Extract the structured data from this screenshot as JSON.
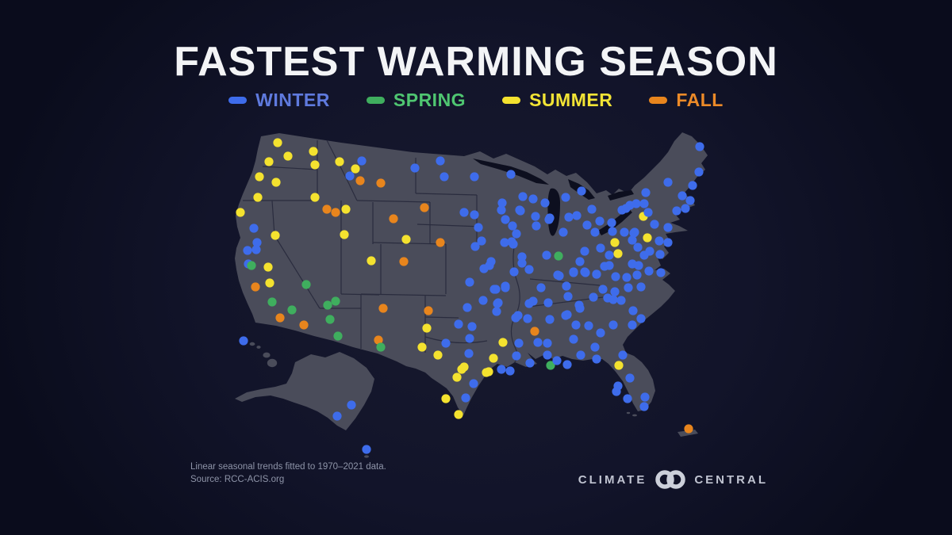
{
  "title": "FASTEST WARMING SEASON",
  "legend": {
    "items": [
      {
        "key": "winter",
        "label": "WINTER",
        "color": "#3e6ceb",
        "label_color": "#5f7ade"
      },
      {
        "key": "spring",
        "label": "SPRING",
        "color": "#3fae5e",
        "label_color": "#4fc671"
      },
      {
        "key": "summer",
        "label": "SUMMER",
        "color": "#f4e22f",
        "label_color": "#f2e435"
      },
      {
        "key": "fall",
        "label": "FALL",
        "color": "#e8851d",
        "label_color": "#ec8a28"
      }
    ]
  },
  "footer": {
    "line1": "Linear seasonal trends fitted to 1970–2021 data.",
    "line2": "Source: RCC-ACIS.org"
  },
  "logo": {
    "left": "CLIMATE",
    "right": "CENTRAL"
  },
  "map_colors": {
    "land": "#4a4c5a",
    "water": "#0d0f1f",
    "state_border": "#25273a"
  },
  "chart_data": {
    "type": "scatter",
    "title": "FASTEST WARMING SEASON",
    "description": "US map of weather stations colored by which season warmed fastest, linear trends 1970-2021",
    "legend_entries": [
      "WINTER",
      "SPRING",
      "SUMMER",
      "FALL"
    ],
    "season_colors": {
      "w": "#3e6ceb",
      "sp": "#3fae5e",
      "su": "#f4e22f",
      "f": "#e8851d"
    },
    "season_names": {
      "w": "winter",
      "sp": "spring",
      "su": "summer",
      "f": "fall"
    },
    "points": [
      [
        350,
        180,
        "su"
      ],
      [
        363,
        197,
        "su"
      ],
      [
        395,
        191,
        "su"
      ],
      [
        339,
        204,
        "su"
      ],
      [
        397,
        208,
        "su"
      ],
      [
        327,
        223,
        "su"
      ],
      [
        348,
        230,
        "su"
      ],
      [
        325,
        249,
        "su"
      ],
      [
        397,
        249,
        "su"
      ],
      [
        303,
        268,
        "su"
      ],
      [
        320,
        288,
        "w"
      ],
      [
        347,
        297,
        "su"
      ],
      [
        312,
        316,
        "w"
      ],
      [
        324,
        306,
        "w"
      ],
      [
        323,
        315,
        "w"
      ],
      [
        313,
        333,
        "w"
      ],
      [
        317,
        335,
        "sp"
      ],
      [
        338,
        337,
        "su"
      ],
      [
        340,
        357,
        "su"
      ],
      [
        322,
        362,
        "f"
      ],
      [
        343,
        381,
        "sp"
      ],
      [
        386,
        359,
        "sp"
      ],
      [
        368,
        391,
        "sp"
      ],
      [
        353,
        401,
        "f"
      ],
      [
        383,
        410,
        "f"
      ],
      [
        413,
        385,
        "sp"
      ],
      [
        423,
        380,
        "sp"
      ],
      [
        416,
        403,
        "sp"
      ],
      [
        426,
        424,
        "sp"
      ],
      [
        434,
        296,
        "su"
      ],
      [
        436,
        264,
        "su"
      ],
      [
        412,
        264,
        "f"
      ],
      [
        423,
        268,
        "f"
      ],
      [
        477,
        429,
        "f"
      ],
      [
        480,
        438,
        "sp"
      ],
      [
        483,
        389,
        "f"
      ],
      [
        468,
        329,
        "su"
      ],
      [
        509,
        330,
        "f"
      ],
      [
        512,
        302,
        "su"
      ],
      [
        496,
        276,
        "f"
      ],
      [
        428,
        204,
        "su"
      ],
      [
        448,
        213,
        "su"
      ],
      [
        441,
        222,
        "w"
      ],
      [
        456,
        203,
        "w"
      ],
      [
        454,
        228,
        "f"
      ],
      [
        480,
        231,
        "f"
      ],
      [
        523,
        212,
        "w"
      ],
      [
        535,
        262,
        "f"
      ],
      [
        555,
        306,
        "f"
      ],
      [
        555,
        203,
        "w"
      ],
      [
        560,
        223,
        "w"
      ],
      [
        598,
        223,
        "w"
      ],
      [
        585,
        268,
        "w"
      ],
      [
        598,
        271,
        "w"
      ],
      [
        603,
        287,
        "w"
      ],
      [
        607,
        304,
        "w"
      ],
      [
        599,
        311,
        "w"
      ],
      [
        592,
        356,
        "w"
      ],
      [
        578,
        409,
        "w"
      ],
      [
        595,
        412,
        "w"
      ],
      [
        589,
        388,
        "w"
      ],
      [
        592,
        427,
        "w"
      ],
      [
        591,
        446,
        "w"
      ],
      [
        562,
        433,
        "w"
      ],
      [
        540,
        392,
        "f"
      ],
      [
        538,
        414,
        "su"
      ],
      [
        532,
        438,
        "su"
      ],
      [
        552,
        448,
        "su"
      ],
      [
        582,
        466,
        "su"
      ],
      [
        576,
        476,
        "su"
      ],
      [
        585,
        463,
        "su"
      ],
      [
        613,
        470,
        "su"
      ],
      [
        597,
        484,
        "w"
      ],
      [
        562,
        503,
        "su"
      ],
      [
        587,
        502,
        "w"
      ],
      [
        578,
        523,
        "su"
      ],
      [
        623,
        365,
        "w"
      ],
      [
        609,
        379,
        "w"
      ],
      [
        627,
        383,
        "w"
      ],
      [
        637,
        361,
        "w"
      ],
      [
        617,
        335,
        "w"
      ],
      [
        610,
        339,
        "w"
      ],
      [
        619,
        330,
        "w"
      ],
      [
        644,
        220,
        "w"
      ],
      [
        659,
        248,
        "w"
      ],
      [
        672,
        251,
        "w"
      ],
      [
        687,
        256,
        "w"
      ],
      [
        656,
        266,
        "w"
      ],
      [
        675,
        273,
        "w"
      ],
      [
        676,
        285,
        "w"
      ],
      [
        646,
        285,
        "w"
      ],
      [
        637,
        277,
        "w"
      ],
      [
        633,
        256,
        "w"
      ],
      [
        632,
        265,
        "w"
      ],
      [
        655,
        265,
        "w"
      ],
      [
        651,
        295,
        "w"
      ],
      [
        645,
        305,
        "w"
      ],
      [
        636,
        306,
        "w"
      ],
      [
        647,
        308,
        "w"
      ],
      [
        658,
        324,
        "w"
      ],
      [
        667,
        340,
        "w"
      ],
      [
        653,
        398,
        "w"
      ],
      [
        665,
        402,
        "w"
      ],
      [
        672,
        380,
        "w"
      ],
      [
        628,
        382,
        "w"
      ],
      [
        626,
        393,
        "w"
      ],
      [
        650,
        401,
        "w"
      ],
      [
        648,
        343,
        "w"
      ],
      [
        658,
        332,
        "w"
      ],
      [
        625,
        365,
        "w"
      ],
      [
        637,
        363,
        "w"
      ],
      [
        689,
        322,
        "w"
      ],
      [
        704,
        323,
        "sp"
      ],
      [
        693,
        275,
        "w"
      ],
      [
        692,
        277,
        "w"
      ],
      [
        710,
        293,
        "w"
      ],
      [
        713,
        249,
        "w"
      ],
      [
        733,
        241,
        "w"
      ],
      [
        717,
        274,
        "w"
      ],
      [
        727,
        272,
        "w"
      ],
      [
        746,
        264,
        "w"
      ],
      [
        756,
        279,
        "w"
      ],
      [
        740,
        284,
        "w"
      ],
      [
        750,
        293,
        "w"
      ],
      [
        757,
        313,
        "w"
      ],
      [
        768,
        322,
        "w"
      ],
      [
        772,
        292,
        "w"
      ],
      [
        771,
        281,
        "w"
      ],
      [
        784,
        265,
        "w"
      ],
      [
        768,
        335,
        "w"
      ],
      [
        737,
        317,
        "w"
      ],
      [
        731,
        330,
        "w"
      ],
      [
        723,
        343,
        "w"
      ],
      [
        738,
        344,
        "w"
      ],
      [
        731,
        389,
        "w"
      ],
      [
        715,
        397,
        "w"
      ],
      [
        716,
        374,
        "w"
      ],
      [
        714,
        361,
        "w"
      ],
      [
        703,
        347,
        "w"
      ],
      [
        691,
        382,
        "w"
      ],
      [
        693,
        403,
        "w"
      ],
      [
        713,
        398,
        "w"
      ],
      [
        773,
        378,
        "w"
      ],
      [
        766,
        376,
        "w"
      ],
      [
        783,
        379,
        "w"
      ],
      [
        776,
        349,
        "w"
      ],
      [
        790,
        350,
        "w"
      ],
      [
        797,
        303,
        "w"
      ],
      [
        800,
        293,
        "w"
      ],
      [
        803,
        347,
        "w"
      ],
      [
        805,
        335,
        "w"
      ],
      [
        808,
        362,
        "w"
      ],
      [
        792,
        363,
        "w"
      ],
      [
        798,
        392,
        "w"
      ],
      [
        808,
        402,
        "w"
      ],
      [
        797,
        410,
        "w"
      ],
      [
        797,
        333,
        "w"
      ],
      [
        775,
        306,
        "su"
      ],
      [
        779,
        320,
        "su"
      ],
      [
        811,
        273,
        "su"
      ],
      [
        816,
        300,
        "su"
      ],
      [
        787,
        293,
        "w"
      ],
      [
        789,
        263,
        "w"
      ],
      [
        794,
        259,
        "w"
      ],
      [
        802,
        257,
        "w"
      ],
      [
        812,
        257,
        "w"
      ],
      [
        817,
        268,
        "w"
      ],
      [
        814,
        243,
        "w"
      ],
      [
        825,
        283,
        "w"
      ],
      [
        831,
        304,
        "w"
      ],
      [
        842,
        287,
        "w"
      ],
      [
        842,
        306,
        "w"
      ],
      [
        853,
        266,
        "w"
      ],
      [
        864,
        263,
        "w"
      ],
      [
        870,
        253,
        "w"
      ],
      [
        860,
        247,
        "w"
      ],
      [
        873,
        234,
        "w"
      ],
      [
        881,
        217,
        "w"
      ],
      [
        882,
        185,
        "w"
      ],
      [
        842,
        230,
        "w"
      ],
      [
        799,
        294,
        "w"
      ],
      [
        804,
        312,
        "w"
      ],
      [
        812,
        322,
        "w"
      ],
      [
        819,
        317,
        "w"
      ],
      [
        832,
        321,
        "w"
      ],
      [
        682,
        363,
        "w"
      ],
      [
        667,
        383,
        "w"
      ],
      [
        674,
        418,
        "f"
      ],
      [
        654,
        433,
        "w"
      ],
      [
        634,
        432,
        "su"
      ],
      [
        622,
        452,
        "su"
      ],
      [
        616,
        469,
        "su"
      ],
      [
        632,
        466,
        "w"
      ],
      [
        643,
        468,
        "w"
      ],
      [
        651,
        449,
        "w"
      ],
      [
        668,
        458,
        "w"
      ],
      [
        678,
        432,
        "w"
      ],
      [
        690,
        448,
        "w"
      ],
      [
        690,
        433,
        "w"
      ],
      [
        694,
        461,
        "sp"
      ],
      [
        702,
        455,
        "w"
      ],
      [
        715,
        460,
        "w"
      ],
      [
        723,
        428,
        "w"
      ],
      [
        726,
        410,
        "w"
      ],
      [
        742,
        411,
        "w"
      ],
      [
        730,
        385,
        "w"
      ],
      [
        748,
        375,
        "w"
      ],
      [
        757,
        420,
        "w"
      ],
      [
        760,
        365,
        "w"
      ],
      [
        773,
        410,
        "w"
      ],
      [
        775,
        368,
        "w"
      ],
      [
        762,
        336,
        "w"
      ],
      [
        752,
        346,
        "w"
      ],
      [
        737,
        343,
        "w"
      ],
      [
        732,
        448,
        "w"
      ],
      [
        752,
        453,
        "w"
      ],
      [
        750,
        438,
        "w"
      ],
      [
        785,
        448,
        "w"
      ],
      [
        780,
        461,
        "su"
      ],
      [
        794,
        477,
        "w"
      ],
      [
        779,
        487,
        "w"
      ],
      [
        777,
        494,
        "w"
      ],
      [
        791,
        503,
        "w"
      ],
      [
        813,
        501,
        "w"
      ],
      [
        812,
        513,
        "w"
      ],
      [
        818,
        342,
        "w"
      ],
      [
        833,
        344,
        "w"
      ],
      [
        705,
        348,
        "w"
      ],
      [
        723,
        344,
        "w"
      ],
      [
        752,
        346,
        "w"
      ],
      [
        443,
        511,
        "w"
      ],
      [
        425,
        525,
        "w"
      ],
      [
        307,
        430,
        "w"
      ],
      [
        462,
        567,
        "w"
      ],
      [
        868,
        541,
        "f"
      ]
    ]
  }
}
